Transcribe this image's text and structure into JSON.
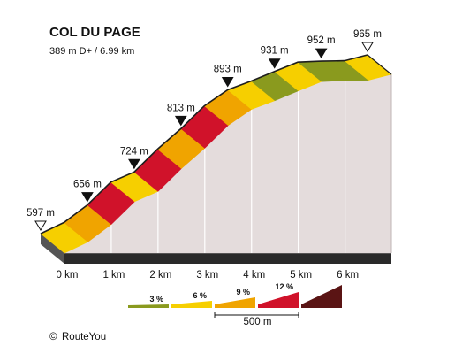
{
  "chart_data": {
    "type": "area",
    "title": "COL DU PAGE",
    "subtitle": "389 m D+ / 6.99 km",
    "xlabel": "",
    "ylabel": "",
    "x_unit": "km",
    "xlim": [
      0,
      6.99
    ],
    "ylim": [
      597,
      965
    ],
    "x_ticks": [
      {
        "x": 0,
        "label": "0 km"
      },
      {
        "x": 1,
        "label": "1 km"
      },
      {
        "x": 2,
        "label": "2 km"
      },
      {
        "x": 3,
        "label": "3 km"
      },
      {
        "x": 4,
        "label": "4 km"
      },
      {
        "x": 5,
        "label": "5 km"
      },
      {
        "x": 6,
        "label": "6 km"
      }
    ],
    "segments": [
      {
        "x0": 0.0,
        "x1": 0.5,
        "y0": 597,
        "y1": 620,
        "color": "#f6cf00"
      },
      {
        "x0": 0.5,
        "x1": 1.0,
        "y0": 620,
        "y1": 656,
        "color": "#f0a400"
      },
      {
        "x0": 1.0,
        "x1": 1.5,
        "y0": 656,
        "y1": 703,
        "color": "#d0122a"
      },
      {
        "x0": 1.5,
        "x1": 2.0,
        "y0": 703,
        "y1": 724,
        "color": "#f6cf00"
      },
      {
        "x0": 2.0,
        "x1": 2.5,
        "y0": 724,
        "y1": 771,
        "color": "#d0122a"
      },
      {
        "x0": 2.5,
        "x1": 3.0,
        "y0": 771,
        "y1": 813,
        "color": "#f0a400"
      },
      {
        "x0": 3.0,
        "x1": 3.5,
        "y0": 813,
        "y1": 860,
        "color": "#d0122a"
      },
      {
        "x0": 3.5,
        "x1": 4.0,
        "y0": 860,
        "y1": 893,
        "color": "#f0a400"
      },
      {
        "x0": 4.0,
        "x1": 4.5,
        "y0": 893,
        "y1": 911,
        "color": "#f6cf00"
      },
      {
        "x0": 4.5,
        "x1": 5.0,
        "y0": 911,
        "y1": 931,
        "color": "#8a9a1e"
      },
      {
        "x0": 5.0,
        "x1": 5.5,
        "y0": 931,
        "y1": 950,
        "color": "#f6cf00"
      },
      {
        "x0": 5.5,
        "x1": 6.0,
        "y0": 950,
        "y1": 952,
        "color": "#8a9a1e"
      },
      {
        "x0": 6.0,
        "x1": 6.5,
        "y0": 952,
        "y1": 953,
        "color": "#8a9a1e"
      },
      {
        "x0": 6.5,
        "x1": 6.99,
        "y0": 953,
        "y1": 965,
        "color": "#f6cf00"
      }
    ],
    "markers": [
      {
        "x": 0,
        "label": "597 m",
        "style": "open"
      },
      {
        "x": 1,
        "label": "656 m",
        "style": "filled"
      },
      {
        "x": 2,
        "label": "724 m",
        "style": "filled"
      },
      {
        "x": 3,
        "label": "813 m",
        "style": "filled"
      },
      {
        "x": 4,
        "label": "893 m",
        "style": "filled"
      },
      {
        "x": 5,
        "label": "931 m",
        "style": "filled"
      },
      {
        "x": 6,
        "label": "952 m",
        "style": "filled"
      },
      {
        "x": 6.99,
        "label": "965 m",
        "style": "open"
      }
    ],
    "legend": {
      "items": [
        {
          "label": "3 %",
          "color": "#8a9a1e"
        },
        {
          "label": "6 %",
          "color": "#f6cf00"
        },
        {
          "label": "9 %",
          "color": "#f0a400"
        },
        {
          "label": "12 %",
          "color": "#d0122a"
        },
        {
          "label": "",
          "color": "#5a1414"
        }
      ],
      "scale_label": "500 m",
      "placement": "bottom-center"
    },
    "colors": {
      "side": "#e4dcdc",
      "base_top": "#c8c8c8",
      "base_front": "#2a2a2a",
      "outline": "#1e1e1e"
    }
  },
  "credit": {
    "symbol": "©",
    "text": "RouteYou"
  }
}
